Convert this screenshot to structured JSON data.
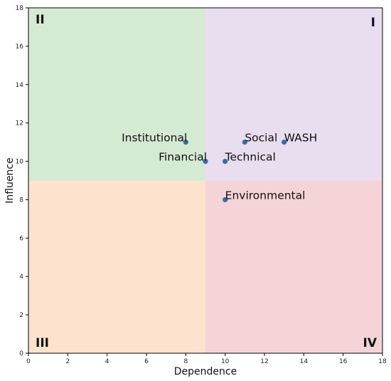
{
  "chart_data": {
    "type": "scatter",
    "xlabel": "Dependence",
    "ylabel": "Influence",
    "xlim": [
      0,
      18
    ],
    "ylim": [
      0,
      18
    ],
    "x_ticks": [
      "0",
      "2",
      "4",
      "6",
      "8",
      "10",
      "12",
      "14",
      "16",
      "18"
    ],
    "y_ticks": [
      "0",
      "2",
      "4",
      "6",
      "8",
      "10",
      "12",
      "14",
      "16",
      "18"
    ],
    "grid": false,
    "quadrant_split": {
      "x": 9,
      "y": 9
    },
    "quadrants": [
      {
        "label": "I",
        "position": "top-right",
        "color": "#e8def0"
      },
      {
        "label": "II",
        "position": "top-left",
        "color": "#d5ead3"
      },
      {
        "label": "III",
        "position": "bottom-left",
        "color": "#fde3cd"
      },
      {
        "label": "IV",
        "position": "bottom-right",
        "color": "#f4d4d6"
      }
    ],
    "point_color": "#3a6ab0",
    "points": [
      {
        "label": "Institutional",
        "x": 8,
        "y": 11,
        "label_side": "left"
      },
      {
        "label": "Social",
        "x": 11,
        "y": 11,
        "label_side": "right"
      },
      {
        "label": "WASH",
        "x": 13,
        "y": 11,
        "label_side": "right"
      },
      {
        "label": "Financial",
        "x": 9,
        "y": 10,
        "label_side": "left"
      },
      {
        "label": "Technical",
        "x": 10,
        "y": 10,
        "label_side": "right"
      },
      {
        "label": "Environmental",
        "x": 10,
        "y": 8,
        "label_side": "right"
      }
    ]
  }
}
